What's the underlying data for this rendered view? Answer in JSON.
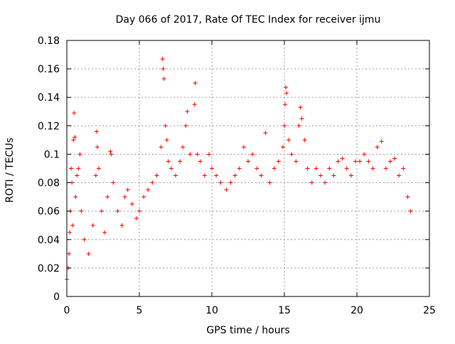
{
  "chart_data": {
    "type": "scatter",
    "title": "Day 066 of 2017, Rate Of TEC Index for receiver ijmu",
    "xlabel": "GPS time / hours",
    "ylabel": "ROTI / TECUs",
    "xlim": [
      0,
      25
    ],
    "ylim": [
      0,
      0.18
    ],
    "x_ticks": [
      0,
      5,
      10,
      15,
      20,
      25
    ],
    "x_tick_labels": [
      "0",
      "5",
      "10",
      "15",
      "20",
      "25"
    ],
    "y_ticks": [
      0,
      0.02,
      0.04,
      0.06,
      0.08,
      0.1,
      0.12,
      0.14,
      0.16,
      0.18
    ],
    "y_tick_labels": [
      "0",
      "0.02",
      "0.04",
      "0.06",
      "0.08",
      "0.1",
      "0.12",
      "0.14",
      "0.16",
      "0.18"
    ],
    "grid": true,
    "marker": "+",
    "color": "#ff0000",
    "series": [
      {
        "points": [
          [
            0.0,
            0.012
          ],
          [
            0.1,
            0.02
          ],
          [
            0.15,
            0.03
          ],
          [
            0.2,
            0.045
          ],
          [
            0.25,
            0.06
          ],
          [
            0.3,
            0.09
          ],
          [
            0.35,
            0.08
          ],
          [
            0.4,
            0.05
          ],
          [
            0.45,
            0.11
          ],
          [
            0.5,
            0.129
          ],
          [
            0.55,
            0.112
          ],
          [
            0.6,
            0.07
          ],
          [
            0.7,
            0.085
          ],
          [
            0.8,
            0.09
          ],
          [
            0.9,
            0.1
          ],
          [
            1.0,
            0.06
          ],
          [
            1.2,
            0.04
          ],
          [
            1.5,
            0.03
          ],
          [
            1.8,
            0.05
          ],
          [
            2.0,
            0.085
          ],
          [
            2.05,
            0.116
          ],
          [
            2.1,
            0.105
          ],
          [
            2.2,
            0.09
          ],
          [
            2.4,
            0.06
          ],
          [
            2.6,
            0.045
          ],
          [
            2.8,
            0.07
          ],
          [
            3.0,
            0.102
          ],
          [
            3.05,
            0.1
          ],
          [
            3.2,
            0.08
          ],
          [
            3.5,
            0.06
          ],
          [
            3.8,
            0.05
          ],
          [
            4.0,
            0.07
          ],
          [
            4.2,
            0.075
          ],
          [
            4.5,
            0.065
          ],
          [
            4.8,
            0.055
          ],
          [
            5.0,
            0.06
          ],
          [
            5.3,
            0.07
          ],
          [
            5.6,
            0.075
          ],
          [
            5.9,
            0.08
          ],
          [
            6.2,
            0.085
          ],
          [
            6.5,
            0.105
          ],
          [
            6.6,
            0.167
          ],
          [
            6.65,
            0.16
          ],
          [
            6.7,
            0.153
          ],
          [
            6.8,
            0.12
          ],
          [
            6.9,
            0.11
          ],
          [
            7.0,
            0.095
          ],
          [
            7.2,
            0.09
          ],
          [
            7.5,
            0.085
          ],
          [
            7.8,
            0.095
          ],
          [
            8.0,
            0.105
          ],
          [
            8.2,
            0.12
          ],
          [
            8.3,
            0.13
          ],
          [
            8.5,
            0.1
          ],
          [
            8.8,
            0.135
          ],
          [
            8.85,
            0.15
          ],
          [
            9.0,
            0.1
          ],
          [
            9.2,
            0.095
          ],
          [
            9.5,
            0.085
          ],
          [
            9.8,
            0.1
          ],
          [
            10.0,
            0.09
          ],
          [
            10.3,
            0.085
          ],
          [
            10.6,
            0.08
          ],
          [
            11.0,
            0.075
          ],
          [
            11.3,
            0.08
          ],
          [
            11.6,
            0.085
          ],
          [
            11.9,
            0.09
          ],
          [
            12.2,
            0.105
          ],
          [
            12.5,
            0.095
          ],
          [
            12.8,
            0.1
          ],
          [
            13.1,
            0.09
          ],
          [
            13.4,
            0.085
          ],
          [
            13.7,
            0.115
          ],
          [
            14.0,
            0.08
          ],
          [
            14.3,
            0.09
          ],
          [
            14.6,
            0.095
          ],
          [
            14.9,
            0.105
          ],
          [
            15.0,
            0.12
          ],
          [
            15.05,
            0.135
          ],
          [
            15.1,
            0.147
          ],
          [
            15.15,
            0.143
          ],
          [
            15.3,
            0.11
          ],
          [
            15.5,
            0.1
          ],
          [
            15.8,
            0.095
          ],
          [
            16.0,
            0.12
          ],
          [
            16.1,
            0.133
          ],
          [
            16.2,
            0.125
          ],
          [
            16.4,
            0.11
          ],
          [
            16.6,
            0.09
          ],
          [
            16.9,
            0.08
          ],
          [
            17.2,
            0.09
          ],
          [
            17.5,
            0.085
          ],
          [
            17.8,
            0.08
          ],
          [
            18.1,
            0.09
          ],
          [
            18.4,
            0.085
          ],
          [
            18.7,
            0.095
          ],
          [
            19.0,
            0.097
          ],
          [
            19.3,
            0.09
          ],
          [
            19.6,
            0.085
          ],
          [
            19.9,
            0.095
          ],
          [
            20.2,
            0.095
          ],
          [
            20.5,
            0.1
          ],
          [
            20.8,
            0.095
          ],
          [
            21.1,
            0.09
          ],
          [
            21.4,
            0.105
          ],
          [
            21.7,
            0.109
          ],
          [
            22.0,
            0.09
          ],
          [
            22.3,
            0.095
          ],
          [
            22.6,
            0.097
          ],
          [
            22.9,
            0.085
          ],
          [
            23.2,
            0.09
          ],
          [
            23.5,
            0.07
          ],
          [
            23.7,
            0.06
          ]
        ]
      }
    ]
  }
}
